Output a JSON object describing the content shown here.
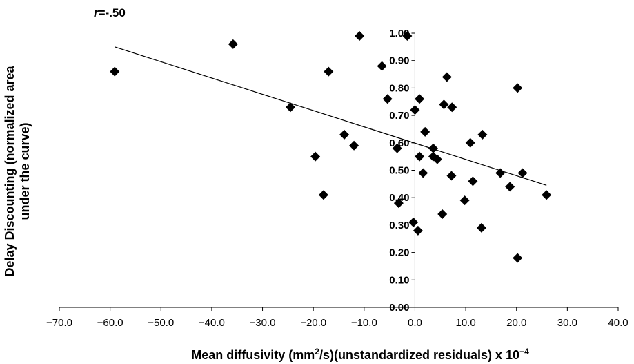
{
  "chart_data": {
    "type": "scatter",
    "annotation": {
      "prefix": "r",
      "value": "=-.50"
    },
    "xlabel": {
      "main": "Mean diffusivity (mm",
      "sup": "2",
      "mid": "/s)(unstandardized residuals) x 10",
      "exp": "−4"
    },
    "ylabel": [
      "Delay Discounting (normalized area",
      "under the curve)"
    ],
    "xlim": [
      -70,
      40
    ],
    "ylim": [
      0,
      1
    ],
    "x_ticks": [
      -70,
      -60,
      -50,
      -40,
      -30,
      -20,
      -10,
      0,
      10,
      20,
      30,
      40
    ],
    "x_tick_labels": [
      "−70.0",
      "−60.0",
      "−50.0",
      "−40.0",
      "−30.0",
      "−20.0",
      "−10.0",
      "0.0",
      "10.0",
      "20.0",
      "30.0",
      "40.0"
    ],
    "y_ticks": [
      0,
      0.1,
      0.2,
      0.3,
      0.4,
      0.5,
      0.6,
      0.7,
      0.8,
      0.9,
      1.0
    ],
    "y_tick_labels": [
      "0.00",
      "0.10",
      "0.20",
      "0.30",
      "0.40",
      "0.50",
      "0.60",
      "0.70",
      "0.80",
      "0.90",
      "1.00"
    ],
    "grid": false,
    "marker": "diamond",
    "marker_color": "#000000",
    "points": [
      [
        -59.1,
        0.86
      ],
      [
        -35.8,
        0.96
      ],
      [
        -24.5,
        0.73
      ],
      [
        -19.6,
        0.55
      ],
      [
        -18.0,
        0.41
      ],
      [
        -17.0,
        0.86
      ],
      [
        -13.9,
        0.63
      ],
      [
        -12.0,
        0.59
      ],
      [
        -10.9,
        0.99
      ],
      [
        -6.5,
        0.88
      ],
      [
        -5.4,
        0.76
      ],
      [
        -3.5,
        0.58
      ],
      [
        -3.2,
        0.38
      ],
      [
        -1.5,
        0.99
      ],
      [
        -0.3,
        0.31
      ],
      [
        0.0,
        0.72
      ],
      [
        0.6,
        0.28
      ],
      [
        0.9,
        0.76
      ],
      [
        0.9,
        0.55
      ],
      [
        1.6,
        0.49
      ],
      [
        2.0,
        0.64
      ],
      [
        3.6,
        0.58
      ],
      [
        3.6,
        0.55
      ],
      [
        4.4,
        0.54
      ],
      [
        5.4,
        0.34
      ],
      [
        5.7,
        0.74
      ],
      [
        6.3,
        0.84
      ],
      [
        7.2,
        0.48
      ],
      [
        7.3,
        0.73
      ],
      [
        9.8,
        0.39
      ],
      [
        10.9,
        0.6
      ],
      [
        11.4,
        0.46
      ],
      [
        13.1,
        0.29
      ],
      [
        13.3,
        0.63
      ],
      [
        16.8,
        0.49
      ],
      [
        18.7,
        0.44
      ],
      [
        20.2,
        0.8
      ],
      [
        20.2,
        0.18
      ],
      [
        21.2,
        0.49
      ],
      [
        25.9,
        0.41
      ]
    ],
    "trendline": {
      "x": [
        -59.1,
        25.9
      ],
      "y": [
        0.95,
        0.445
      ]
    }
  }
}
